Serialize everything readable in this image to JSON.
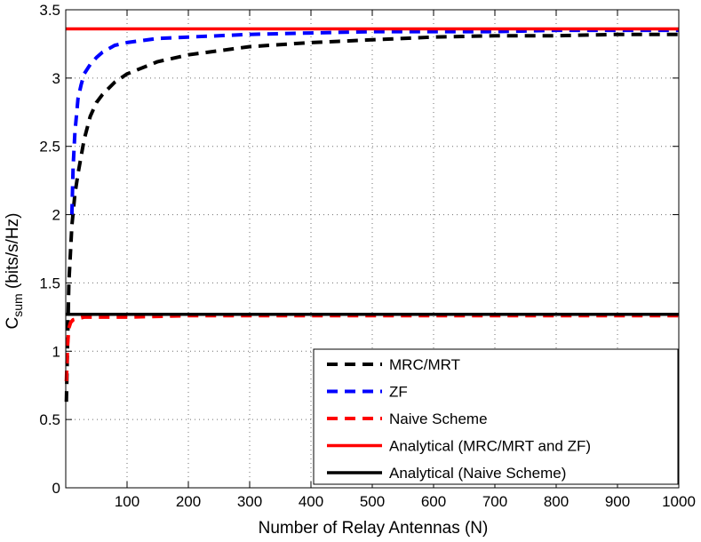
{
  "chart_data": {
    "type": "line",
    "title": "",
    "xlabel": "Number of Relay Antennas (N)",
    "ylabel": {
      "main": "C",
      "sub": "sum",
      "rest": " (bits/s/Hz)"
    },
    "xlim": [
      0,
      1000
    ],
    "ylim": [
      0,
      3.5
    ],
    "xticks": [
      100,
      200,
      300,
      400,
      500,
      600,
      700,
      800,
      900,
      1000
    ],
    "yticks": [
      0,
      0.5,
      1,
      1.5,
      2,
      2.5,
      3,
      3.5
    ],
    "xtick_labels": [
      "100",
      "200",
      "300",
      "400",
      "500",
      "600",
      "700",
      "800",
      "900",
      "1000"
    ],
    "ytick_labels": [
      "0",
      "0.5",
      "1",
      "1.5",
      "2",
      "2.5",
      "3",
      "3.5"
    ],
    "grid": true,
    "legend_position": "bottom-right",
    "series": [
      {
        "name": "MRC/MRT",
        "color": "#000000",
        "style": "dashed",
        "x": [
          1,
          5,
          10,
          15,
          20,
          30,
          40,
          50,
          60,
          80,
          100,
          150,
          200,
          300,
          400,
          500,
          600,
          700,
          800,
          900,
          1000
        ],
        "y": [
          0.63,
          1.5,
          1.92,
          2.15,
          2.3,
          2.55,
          2.72,
          2.82,
          2.88,
          2.97,
          3.03,
          3.12,
          3.17,
          3.23,
          3.26,
          3.28,
          3.3,
          3.31,
          3.31,
          3.32,
          3.32
        ]
      },
      {
        "name": "ZF",
        "color": "#0000ff",
        "style": "dashed",
        "x": [
          10,
          12,
          15,
          20,
          25,
          30,
          40,
          50,
          60,
          80,
          100,
          150,
          200,
          300,
          400,
          500,
          600,
          700,
          800,
          900,
          1000
        ],
        "y": [
          2.0,
          2.35,
          2.6,
          2.85,
          2.95,
          3.03,
          3.1,
          3.15,
          3.19,
          3.24,
          3.26,
          3.29,
          3.3,
          3.32,
          3.33,
          3.34,
          3.34,
          3.34,
          3.35,
          3.35,
          3.35
        ]
      },
      {
        "name": "Naive Scheme",
        "color": "#ff0000",
        "style": "dashed",
        "x": [
          1,
          3,
          5,
          8,
          12,
          20,
          30,
          50,
          100,
          200,
          400,
          600,
          800,
          1000
        ],
        "y": [
          0.78,
          1.05,
          1.17,
          1.21,
          1.23,
          1.24,
          1.25,
          1.25,
          1.25,
          1.26,
          1.26,
          1.26,
          1.26,
          1.26
        ]
      },
      {
        "name": "Analytical (MRC/MRT and ZF)",
        "color": "#ff0000",
        "style": "solid",
        "x": [
          0,
          1000
        ],
        "y": [
          3.36,
          3.36
        ]
      },
      {
        "name": "Analytical (Naive Scheme)",
        "color": "#000000",
        "style": "solid",
        "x": [
          0,
          1000
        ],
        "y": [
          1.27,
          1.27
        ]
      }
    ]
  }
}
